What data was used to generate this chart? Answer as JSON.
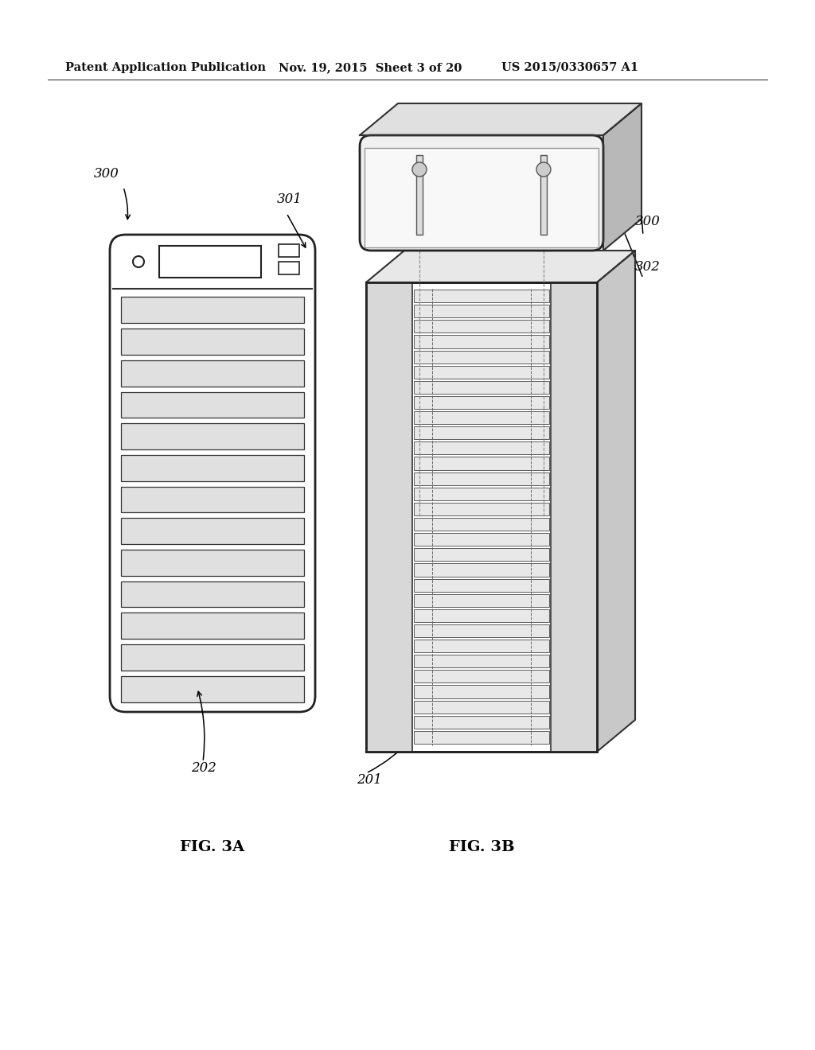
{
  "background_color": "#ffffff",
  "header_text_left": "Patent Application Publication",
  "header_text_mid": "Nov. 19, 2015  Sheet 3 of 20",
  "header_text_right": "US 2015/0330657 A1",
  "fig3a_label": "FIG. 3A",
  "fig3b_label": "FIG. 3B",
  "ref_300_left": "300",
  "ref_301": "301",
  "ref_302": "302",
  "ref_300_right": "300",
  "ref_201": "201",
  "ref_202": "202"
}
